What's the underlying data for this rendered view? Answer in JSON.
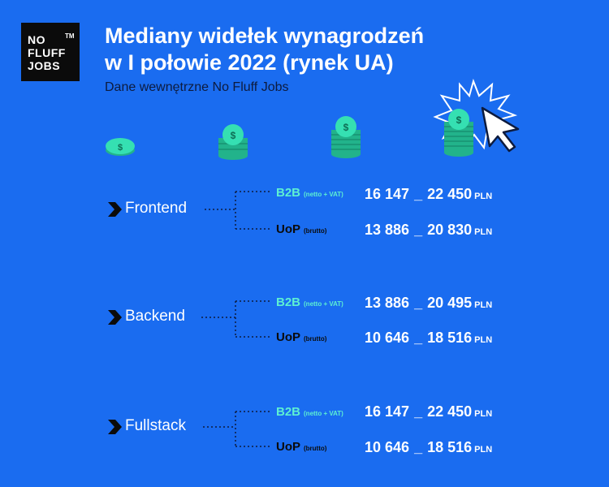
{
  "logo": {
    "line1": "NO",
    "line2": "FLUFF",
    "line3": "JOBS",
    "tm": "TM"
  },
  "title_line1": "Mediany widełek wynagrodzeń",
  "title_line2": "w I połowie 2022 (rynek UA)",
  "subtitle": "Dane wewnętrzne No Fluff Jobs",
  "colors": {
    "background": "#1a6cf0",
    "b2b": "#5df0d2",
    "uop": "#0b0b0b",
    "coin": "#35e0b2"
  },
  "sections": [
    {
      "name": "Frontend",
      "b2b": {
        "label": "B2B",
        "note": "(netto + VAT)",
        "min": "16 147",
        "sep": "_",
        "max": "22 450",
        "currency": "PLN"
      },
      "uop": {
        "label": "UoP",
        "note": "(brutto)",
        "min": "13 886",
        "sep": "_",
        "max": "20 830",
        "currency": "PLN"
      }
    },
    {
      "name": "Backend",
      "b2b": {
        "label": "B2B",
        "note": "(netto + VAT)",
        "min": "13 886",
        "sep": "_",
        "max": "20 495",
        "currency": "PLN"
      },
      "uop": {
        "label": "UoP",
        "note": "(brutto)",
        "min": "10 646",
        "sep": "_",
        "max": "18 516",
        "currency": "PLN"
      }
    },
    {
      "name": "Fullstack",
      "b2b": {
        "label": "B2B",
        "note": "(netto + VAT)",
        "min": "16 147",
        "sep": "_",
        "max": "22 450",
        "currency": "PLN"
      },
      "uop": {
        "label": "UoP",
        "note": "(brutto)",
        "min": "10 646",
        "sep": "_",
        "max": "18 516",
        "currency": "PLN"
      }
    }
  ]
}
